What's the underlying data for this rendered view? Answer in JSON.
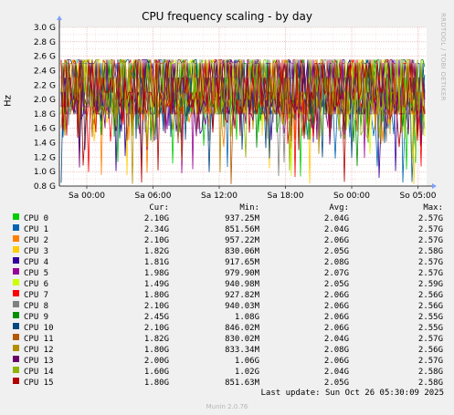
{
  "title": "CPU frequency scaling - by day",
  "side_label": "RRDTOOL / TOBI OETIKER",
  "footer": "Munin 2.0.76",
  "last_update": "Last update: Sun Oct 26 05:30:09 2025",
  "legend_headers": {
    "cur": "Cur:",
    "min": "Min:",
    "avg": "Avg:",
    "max": "Max:"
  },
  "legend": [
    {
      "name": "CPU 0",
      "color": "#00cc00",
      "cur": "2.10G",
      "min": "937.25M",
      "avg": "2.04G",
      "max": "2.57G"
    },
    {
      "name": "CPU 1",
      "color": "#0066b3",
      "cur": "2.34G",
      "min": "851.56M",
      "avg": "2.04G",
      "max": "2.57G"
    },
    {
      "name": "CPU 2",
      "color": "#ff8000",
      "cur": "2.10G",
      "min": "957.22M",
      "avg": "2.06G",
      "max": "2.57G"
    },
    {
      "name": "CPU 3",
      "color": "#ffcc00",
      "cur": "1.82G",
      "min": "830.06M",
      "avg": "2.05G",
      "max": "2.58G"
    },
    {
      "name": "CPU 4",
      "color": "#330099",
      "cur": "1.81G",
      "min": "917.65M",
      "avg": "2.08G",
      "max": "2.57G"
    },
    {
      "name": "CPU 5",
      "color": "#990099",
      "cur": "1.98G",
      "min": "979.90M",
      "avg": "2.07G",
      "max": "2.57G"
    },
    {
      "name": "CPU 6",
      "color": "#ccff00",
      "cur": "1.49G",
      "min": "940.98M",
      "avg": "2.05G",
      "max": "2.59G"
    },
    {
      "name": "CPU 7",
      "color": "#ff0000",
      "cur": "1.80G",
      "min": "927.82M",
      "avg": "2.06G",
      "max": "2.56G"
    },
    {
      "name": "CPU 8",
      "color": "#808080",
      "cur": "2.10G",
      "min": "940.03M",
      "avg": "2.06G",
      "max": "2.56G"
    },
    {
      "name": "CPU 9",
      "color": "#008f00",
      "cur": "2.45G",
      "min": "1.08G",
      "avg": "2.06G",
      "max": "2.55G"
    },
    {
      "name": "CPU 10",
      "color": "#00487d",
      "cur": "2.10G",
      "min": "846.02M",
      "avg": "2.06G",
      "max": "2.55G"
    },
    {
      "name": "CPU 11",
      "color": "#b35a00",
      "cur": "1.82G",
      "min": "830.02M",
      "avg": "2.04G",
      "max": "2.57G"
    },
    {
      "name": "CPU 12",
      "color": "#b38f00",
      "cur": "1.80G",
      "min": "833.34M",
      "avg": "2.08G",
      "max": "2.56G"
    },
    {
      "name": "CPU 13",
      "color": "#6b006b",
      "cur": "2.00G",
      "min": "1.06G",
      "avg": "2.06G",
      "max": "2.57G"
    },
    {
      "name": "CPU 14",
      "color": "#8fb300",
      "cur": "1.60G",
      "min": "1.02G",
      "avg": "2.04G",
      "max": "2.58G"
    },
    {
      "name": "CPU 15",
      "color": "#b30000",
      "cur": "1.80G",
      "min": "851.63M",
      "avg": "2.05G",
      "max": "2.58G"
    }
  ],
  "chart_data": {
    "type": "line",
    "title": "CPU frequency scaling - by day",
    "ylabel": "Hz",
    "ylim": [
      0.8,
      3.0
    ],
    "y_unit": "GHz",
    "y_ticks": [
      "0.8 G",
      "1.0 G",
      "1.2 G",
      "1.4 G",
      "1.6 G",
      "1.8 G",
      "2.0 G",
      "2.2 G",
      "2.4 G",
      "2.6 G",
      "2.8 G",
      "3.0 G"
    ],
    "x_ticks": [
      "Sa 00:00",
      "Sa 06:00",
      "Sa 12:00",
      "Sa 18:00",
      "So 00:00",
      "So 05:00"
    ],
    "grid": true,
    "series": [
      {
        "name": "CPU 0",
        "min": 0.937,
        "avg": 2.04,
        "max": 2.57,
        "cur": 2.1
      },
      {
        "name": "CPU 1",
        "min": 0.852,
        "avg": 2.04,
        "max": 2.57,
        "cur": 2.34
      },
      {
        "name": "CPU 2",
        "min": 0.957,
        "avg": 2.06,
        "max": 2.57,
        "cur": 2.1
      },
      {
        "name": "CPU 3",
        "min": 0.83,
        "avg": 2.05,
        "max": 2.58,
        "cur": 1.82
      },
      {
        "name": "CPU 4",
        "min": 0.918,
        "avg": 2.08,
        "max": 2.57,
        "cur": 1.81
      },
      {
        "name": "CPU 5",
        "min": 0.98,
        "avg": 2.07,
        "max": 2.57,
        "cur": 1.98
      },
      {
        "name": "CPU 6",
        "min": 0.941,
        "avg": 2.05,
        "max": 2.59,
        "cur": 1.49
      },
      {
        "name": "CPU 7",
        "min": 0.928,
        "avg": 2.06,
        "max": 2.56,
        "cur": 1.8
      },
      {
        "name": "CPU 8",
        "min": 0.94,
        "avg": 2.06,
        "max": 2.56,
        "cur": 2.1
      },
      {
        "name": "CPU 9",
        "min": 1.08,
        "avg": 2.06,
        "max": 2.55,
        "cur": 2.45
      },
      {
        "name": "CPU 10",
        "min": 0.846,
        "avg": 2.06,
        "max": 2.55,
        "cur": 2.1
      },
      {
        "name": "CPU 11",
        "min": 0.83,
        "avg": 2.04,
        "max": 2.57,
        "cur": 1.82
      },
      {
        "name": "CPU 12",
        "min": 0.833,
        "avg": 2.08,
        "max": 2.56,
        "cur": 1.8
      },
      {
        "name": "CPU 13",
        "min": 1.06,
        "avg": 2.06,
        "max": 2.57,
        "cur": 2.0
      },
      {
        "name": "CPU 14",
        "min": 1.02,
        "avg": 2.04,
        "max": 2.58,
        "cur": 1.6
      },
      {
        "name": "CPU 15",
        "min": 0.852,
        "avg": 2.05,
        "max": 2.58,
        "cur": 1.8
      }
    ]
  }
}
